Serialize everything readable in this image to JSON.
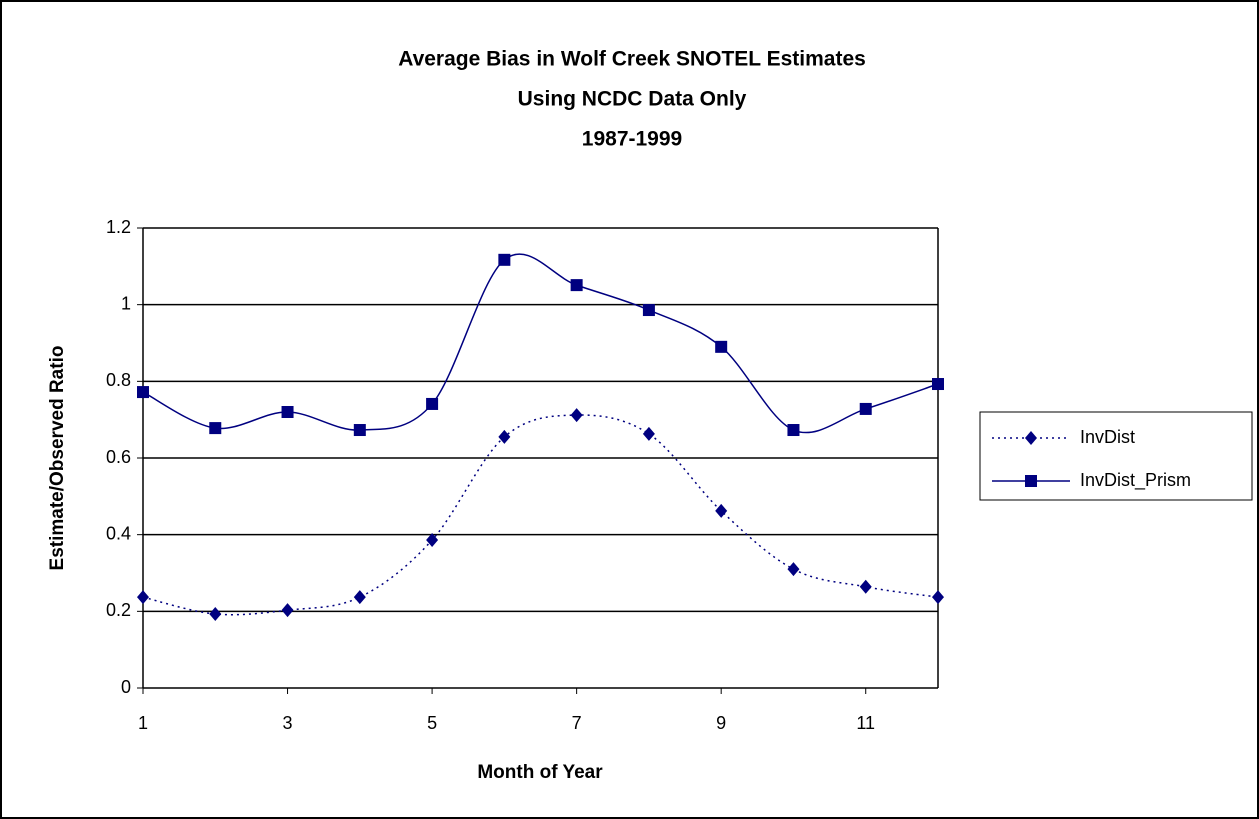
{
  "chart_data": {
    "type": "line",
    "title": [
      "Average Bias in Wolf Creek SNOTEL Estimates",
      "Using NCDC Data Only",
      "1987-1999"
    ],
    "x_label": "Month of Year",
    "y_label": "Estimate/Observed Ratio",
    "x": [
      1,
      2,
      3,
      4,
      5,
      6,
      7,
      8,
      9,
      10,
      11,
      12
    ],
    "series": [
      {
        "name": "InvDist",
        "color": "#000080",
        "marker": "diamond",
        "line_style": "dotted",
        "smooth": true,
        "values": [
          0.237,
          0.193,
          0.203,
          0.237,
          0.386,
          0.655,
          0.712,
          0.663,
          0.462,
          0.31,
          0.264,
          0.237
        ]
      },
      {
        "name": "InvDist_Prism",
        "color": "#000080",
        "marker": "square",
        "line_style": "solid",
        "smooth": true,
        "values": [
          0.772,
          0.678,
          0.72,
          0.673,
          0.741,
          1.117,
          1.051,
          0.986,
          0.89,
          0.673,
          0.728,
          0.793
        ]
      }
    ],
    "xlim": [
      1,
      12
    ],
    "xticks": [
      1,
      3,
      5,
      7,
      9,
      11
    ],
    "ylim": [
      0,
      1.2
    ],
    "yticks": [
      0,
      0.2,
      0.4,
      0.6,
      0.8,
      1,
      1.2
    ],
    "grid": true,
    "legend": "right"
  }
}
